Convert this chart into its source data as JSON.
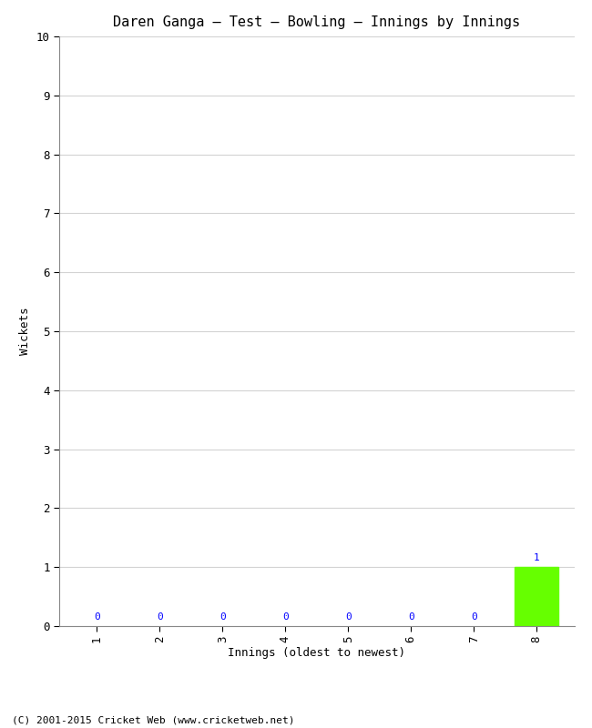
{
  "title": "Daren Ganga – Test – Bowling – Innings by Innings",
  "xlabel": "Innings (oldest to newest)",
  "ylabel": "Wickets",
  "categories": [
    "1",
    "2",
    "3",
    "4",
    "5",
    "6",
    "7",
    "8"
  ],
  "values": [
    0,
    0,
    0,
    0,
    0,
    0,
    0,
    1
  ],
  "bar_color": "#66ff00",
  "zero_label_color": "#0000ff",
  "one_label_color": "#0000ff",
  "ylim": [
    0,
    10
  ],
  "yticks": [
    0,
    1,
    2,
    3,
    4,
    5,
    6,
    7,
    8,
    9,
    10
  ],
  "background_color": "#ffffff",
  "grid_color": "#d3d3d3",
  "title_fontsize": 11,
  "axis_label_fontsize": 9,
  "tick_fontsize": 9,
  "value_label_fontsize": 8,
  "footer": "(C) 2001-2015 Cricket Web (www.cricketweb.net)",
  "footer_fontsize": 8
}
